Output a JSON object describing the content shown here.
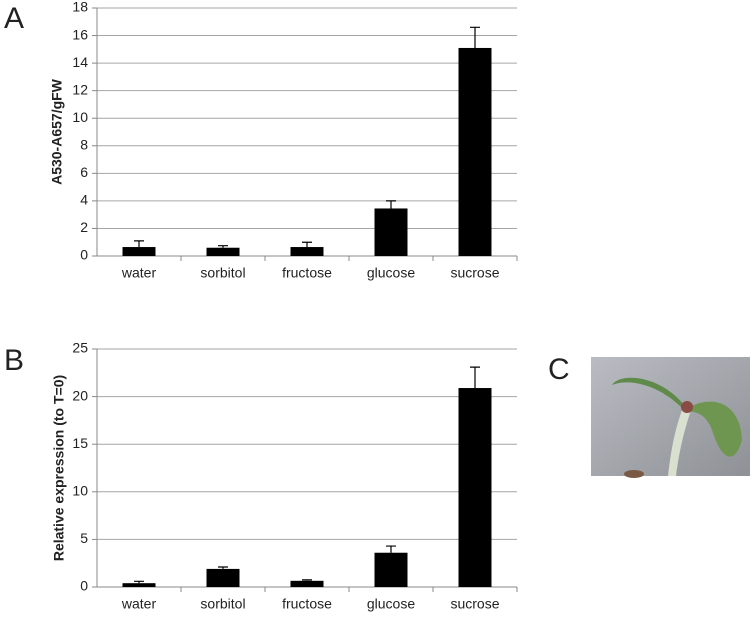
{
  "chart_data": [
    {
      "type": "bar",
      "panel_label": "A",
      "y_label": "A530-A657/gFW",
      "categories": [
        "water",
        "sorbitol",
        "fructose",
        "glucose",
        "sucrose"
      ],
      "values": [
        0.65,
        0.6,
        0.65,
        3.45,
        15.1
      ],
      "errors": [
        0.45,
        0.15,
        0.35,
        0.55,
        1.5
      ],
      "color": "#000000",
      "ylim": [
        0,
        18
      ],
      "yticks": [
        0,
        2,
        4,
        6,
        8,
        10,
        12,
        14,
        16,
        18
      ],
      "grid": true
    },
    {
      "type": "bar",
      "panel_label": "B",
      "y_label": "Relative expression (to T=0)",
      "categories": [
        "water",
        "sorbitol",
        "fructose",
        "glucose",
        "sucrose"
      ],
      "values": [
        0.4,
        1.9,
        0.65,
        3.6,
        20.9
      ],
      "errors": [
        0.2,
        0.2,
        0.1,
        0.7,
        2.2
      ],
      "color": "#000000",
      "ylim": [
        0,
        25
      ],
      "yticks": [
        0,
        5,
        10,
        15,
        20,
        25
      ],
      "grid": true
    }
  ],
  "photo": {
    "label": "C"
  }
}
